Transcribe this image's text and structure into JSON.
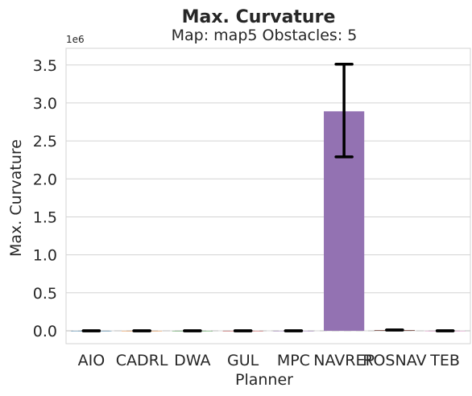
{
  "chart_data": {
    "type": "bar",
    "title": "Max. Curvature",
    "subtitle": "Map: map5 Obstacles: 5",
    "xlabel": "Planner",
    "ylabel": "Max. Curvature",
    "y_multiplier_label": "1e6",
    "categories": [
      "AIO",
      "CADRL",
      "DWA",
      "GUL",
      "MPC",
      "NAVREP",
      "ROSNAV",
      "TEB"
    ],
    "values": [
      0,
      0,
      0,
      0,
      0,
      2.89,
      0.01,
      0
    ],
    "error_low": [
      0,
      0,
      0,
      0,
      0,
      2.29,
      0.01,
      0
    ],
    "error_high": [
      0,
      0,
      0,
      0,
      0,
      3.51,
      0.01,
      0
    ],
    "bar_colors": [
      "#3274a1",
      "#e1812c",
      "#3a923a",
      "#c03d3e",
      "#9372b2",
      "#9372b2",
      "#845b53",
      "#d684bd"
    ],
    "yticks": [
      0.0,
      0.5,
      1.0,
      1.5,
      2.0,
      2.5,
      3.0,
      3.5
    ],
    "ytick_labels": [
      "0.0",
      "0.5",
      "1.0",
      "1.5",
      "2.0",
      "2.5",
      "3.0",
      "3.5"
    ],
    "ylim": [
      -0.17,
      3.72
    ],
    "grid": "horizontal",
    "baseline_dashed": true,
    "error_bar_color": "#000000",
    "grid_color": "#d3d3d3"
  }
}
